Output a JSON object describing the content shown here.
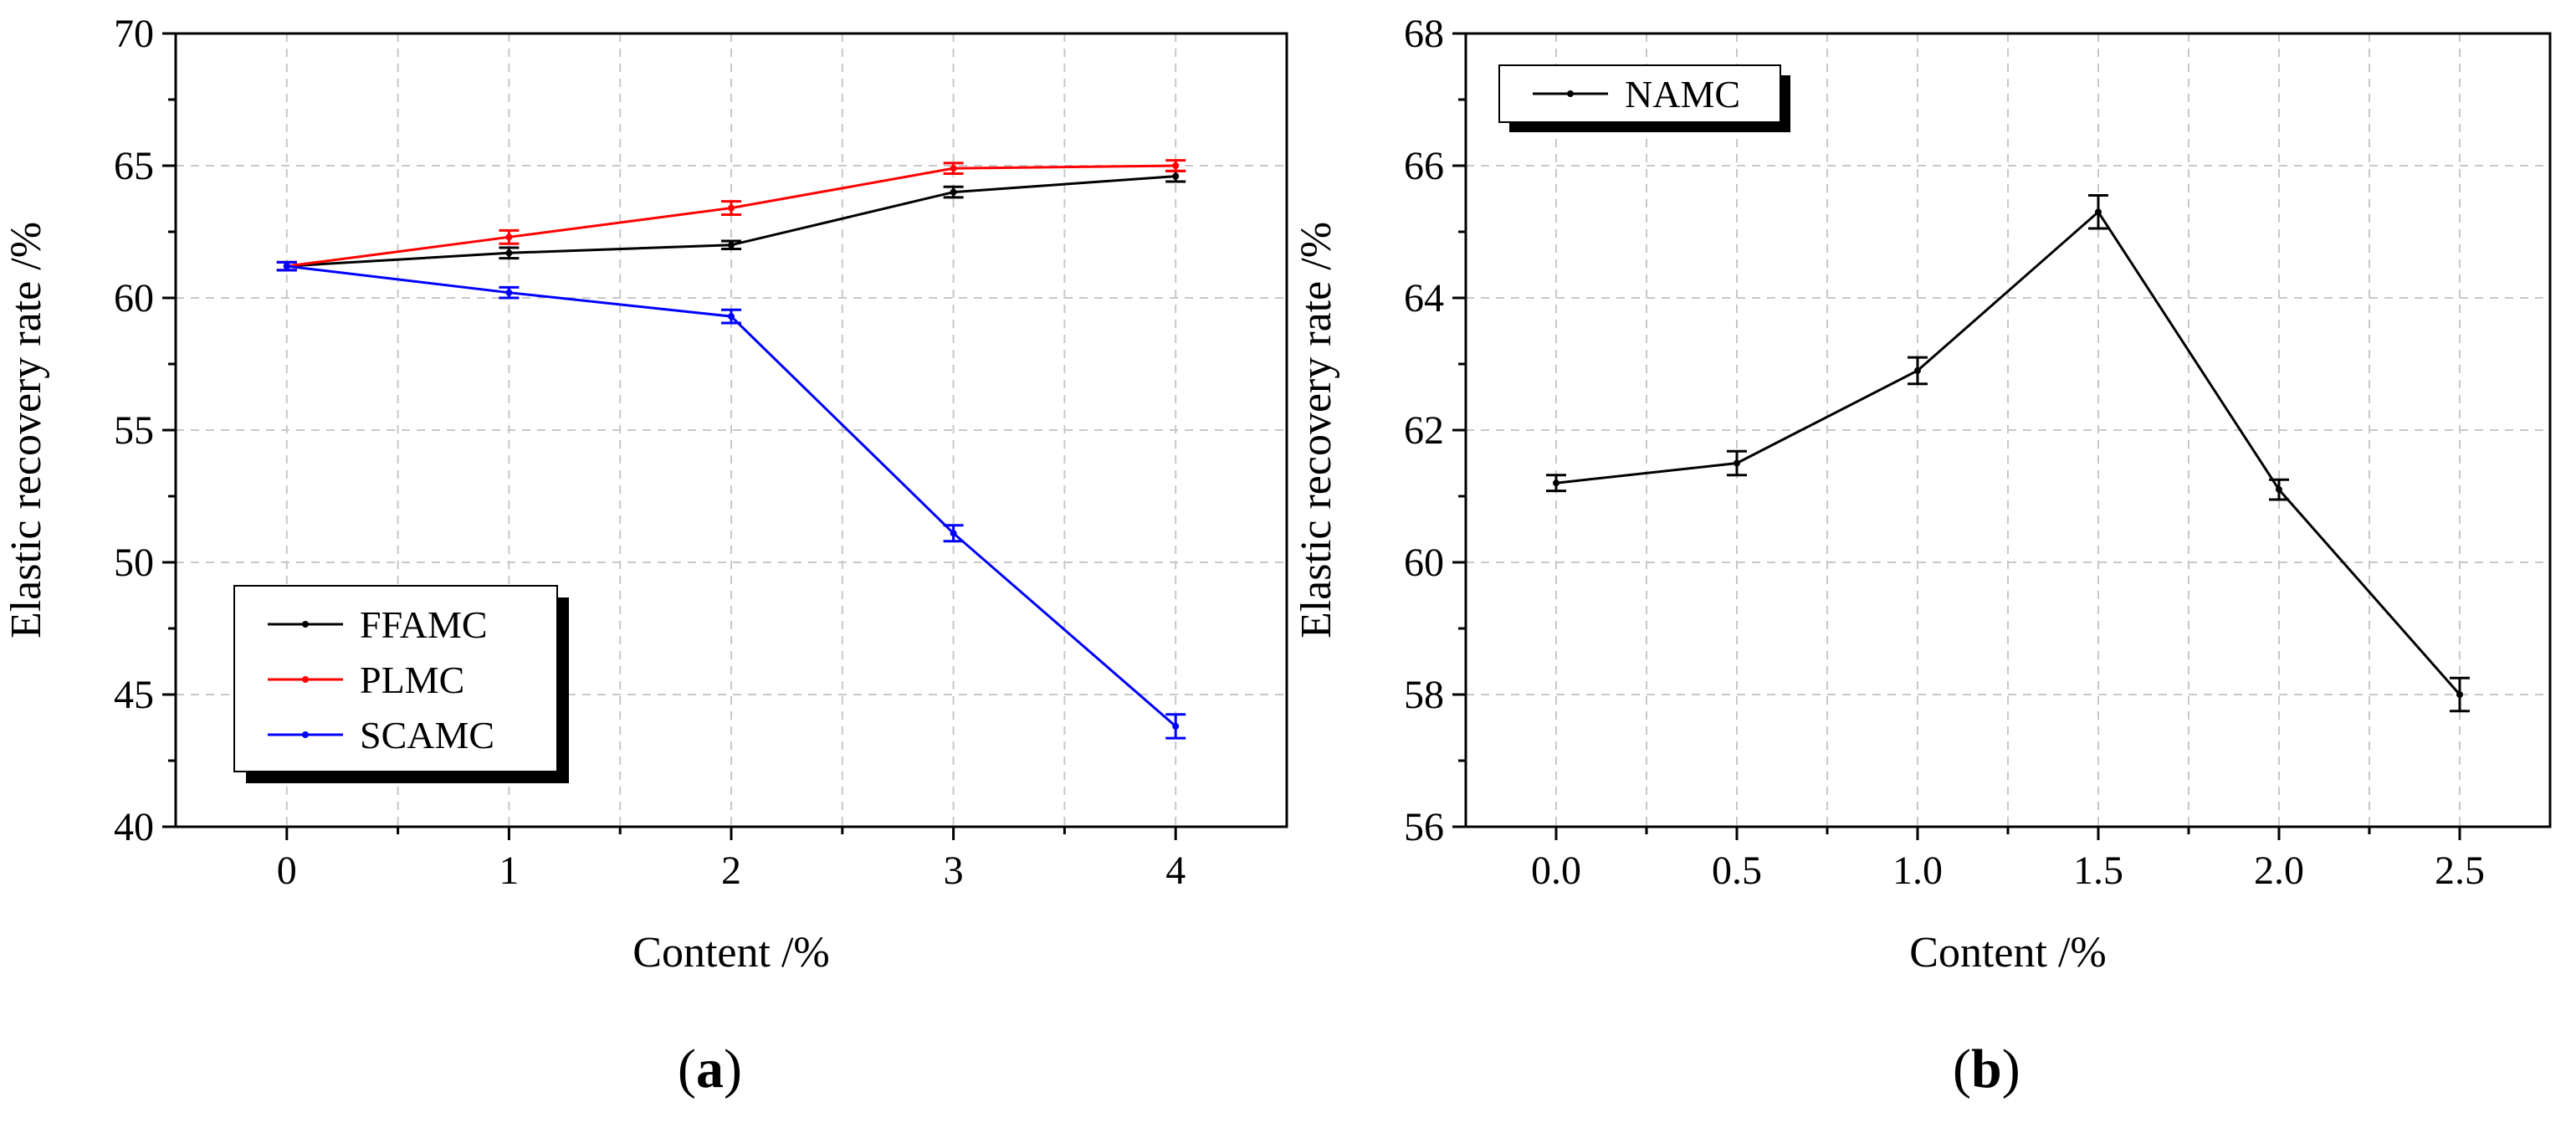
{
  "chart_data": [
    {
      "type": "line",
      "panel": "a",
      "xlabel": "Content /%",
      "ylabel": "Elastic recovery rate /%",
      "x": [
        0,
        1,
        2,
        3,
        4
      ],
      "x_tick_labels": [
        "0",
        "1",
        "2",
        "3",
        "4"
      ],
      "xlim": [
        -0.5,
        4.5
      ],
      "ylim": [
        40,
        70
      ],
      "y_ticks": [
        40,
        45,
        50,
        55,
        60,
        65,
        70
      ],
      "y_tick_labels": [
        "40",
        "45",
        "50",
        "55",
        "60",
        "65",
        "70"
      ],
      "grid": true,
      "legend_position": "bottom-left",
      "series": [
        {
          "name": "FFAMC",
          "color": "#000000",
          "values": [
            61.2,
            61.7,
            62.0,
            64.0,
            64.6
          ],
          "errors": [
            0.15,
            0.2,
            0.15,
            0.2,
            0.2
          ]
        },
        {
          "name": "PLMC",
          "color": "#ff0000",
          "values": [
            61.2,
            62.3,
            63.4,
            64.9,
            65.0
          ],
          "errors": [
            0.15,
            0.25,
            0.25,
            0.2,
            0.2
          ]
        },
        {
          "name": "SCAMC",
          "color": "#0000ff",
          "values": [
            61.2,
            60.2,
            59.3,
            51.1,
            43.8
          ],
          "errors": [
            0.15,
            0.2,
            0.25,
            0.3,
            0.45
          ]
        }
      ]
    },
    {
      "type": "line",
      "panel": "b",
      "xlabel": "Content /%",
      "ylabel": "Elastic recovery rate /%",
      "x": [
        0.0,
        0.5,
        1.0,
        1.5,
        2.0,
        2.5
      ],
      "x_tick_labels": [
        "0.0",
        "0.5",
        "1.0",
        "1.5",
        "2.0",
        "2.5"
      ],
      "xlim": [
        -0.25,
        2.75
      ],
      "ylim": [
        56,
        68
      ],
      "y_ticks": [
        56,
        58,
        60,
        62,
        64,
        66,
        68
      ],
      "y_tick_labels": [
        "56",
        "58",
        "60",
        "62",
        "64",
        "66",
        "68"
      ],
      "grid": true,
      "legend_position": "top-left",
      "series": [
        {
          "name": "NAMC",
          "color": "#000000",
          "values": [
            61.2,
            61.5,
            62.9,
            65.3,
            61.1,
            58.0
          ],
          "errors": [
            0.12,
            0.18,
            0.2,
            0.25,
            0.15,
            0.25
          ]
        }
      ]
    }
  ],
  "captions": {
    "a": "a",
    "b": "b"
  }
}
